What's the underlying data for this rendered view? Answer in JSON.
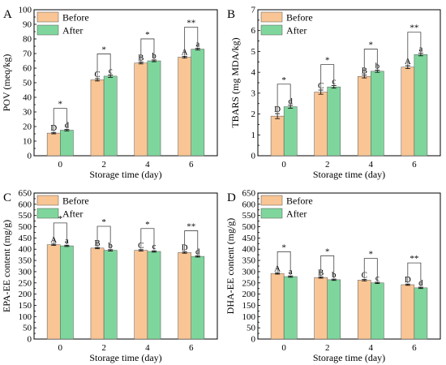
{
  "figure": {
    "colors": {
      "before": "#F9C594",
      "after": "#7FD69C"
    }
  },
  "chart_data": [
    {
      "type": "bar",
      "panel_label": "A",
      "categories": [
        "0",
        "2",
        "4",
        "6"
      ],
      "series": [
        {
          "name": "Before",
          "values": [
            15.5,
            52.0,
            63.5,
            67.5
          ],
          "errors": [
            0.5,
            0.8,
            0.6,
            0.6
          ],
          "letters": [
            "D",
            "C",
            "B",
            "A"
          ]
        },
        {
          "name": "After",
          "values": [
            17.5,
            54.5,
            65.0,
            73.0
          ],
          "errors": [
            0.5,
            0.8,
            0.6,
            0.6
          ],
          "letters": [
            "d",
            "c",
            "b",
            "a"
          ]
        }
      ],
      "significance": [
        "*",
        "*",
        "*",
        "**"
      ],
      "xlabel": "Storage time (day)",
      "ylabel": "POV (meq/kg)",
      "ylim": [
        0,
        100
      ],
      "yticks": [
        "0",
        "10",
        "20",
        "30",
        "40",
        "50",
        "60",
        "70",
        "80",
        "90",
        "100"
      ],
      "legend": "top-left"
    },
    {
      "type": "bar",
      "panel_label": "B",
      "categories": [
        "0",
        "2",
        "4",
        "6"
      ],
      "series": [
        {
          "name": "Before",
          "values": [
            1.9,
            3.05,
            3.8,
            4.25
          ],
          "errors": [
            0.12,
            0.1,
            0.07,
            0.07
          ],
          "letters": [
            "D",
            "C",
            "B",
            "A"
          ]
        },
        {
          "name": "After",
          "values": [
            2.35,
            3.3,
            4.05,
            4.85
          ],
          "errors": [
            0.07,
            0.06,
            0.05,
            0.06
          ],
          "letters": [
            "d",
            "c",
            "b",
            "a"
          ]
        }
      ],
      "significance": [
        "*",
        "*",
        "*",
        "**"
      ],
      "xlabel": "Storage time (day)",
      "ylabel": "TBARS (mg MDA/kg)",
      "ylim": [
        0,
        7
      ],
      "yticks": [
        "0",
        "1",
        "2",
        "3",
        "4",
        "5",
        "6",
        "7"
      ],
      "legend": "top-left"
    },
    {
      "type": "bar",
      "panel_label": "C",
      "categories": [
        "0",
        "2",
        "4",
        "6"
      ],
      "series": [
        {
          "name": "Before",
          "values": [
            420,
            405,
            395,
            385
          ],
          "errors": [
            3,
            3,
            3,
            3
          ],
          "letters": [
            "A",
            "B",
            "C",
            "D"
          ]
        },
        {
          "name": "After",
          "values": [
            415,
            395,
            390,
            368
          ],
          "errors": [
            3,
            3,
            3,
            3
          ],
          "letters": [
            "a",
            "b",
            "c",
            "d"
          ]
        }
      ],
      "significance": [
        "*",
        "*",
        "*",
        "**"
      ],
      "xlabel": "Storage time (day)",
      "ylabel": "EPA-EE content (mg/g)",
      "ylim": [
        0,
        650
      ],
      "yticks": [
        "0",
        "50",
        "100",
        "150",
        "200",
        "250",
        "300",
        "350",
        "400",
        "450",
        "500",
        "550",
        "600",
        "650"
      ],
      "legend": "top-left"
    },
    {
      "type": "bar",
      "panel_label": "D",
      "categories": [
        "0",
        "2",
        "4",
        "6"
      ],
      "series": [
        {
          "name": "Before",
          "values": [
            292,
            274,
            262,
            242
          ],
          "errors": [
            3,
            3,
            3,
            3
          ],
          "letters": [
            "A",
            "B",
            "C",
            "D"
          ]
        },
        {
          "name": "After",
          "values": [
            278,
            264,
            250,
            228
          ],
          "errors": [
            3,
            3,
            3,
            3
          ],
          "letters": [
            "a",
            "b",
            "c",
            "d"
          ]
        }
      ],
      "significance": [
        "*",
        "*",
        "*",
        "**"
      ],
      "xlabel": "Storage time (day)",
      "ylabel": "DHA-EE content (mg/g)",
      "ylim": [
        0,
        650
      ],
      "yticks": [
        "0",
        "50",
        "100",
        "150",
        "200",
        "250",
        "300",
        "350",
        "400",
        "450",
        "500",
        "550",
        "600",
        "650"
      ],
      "legend": "top-left"
    }
  ]
}
